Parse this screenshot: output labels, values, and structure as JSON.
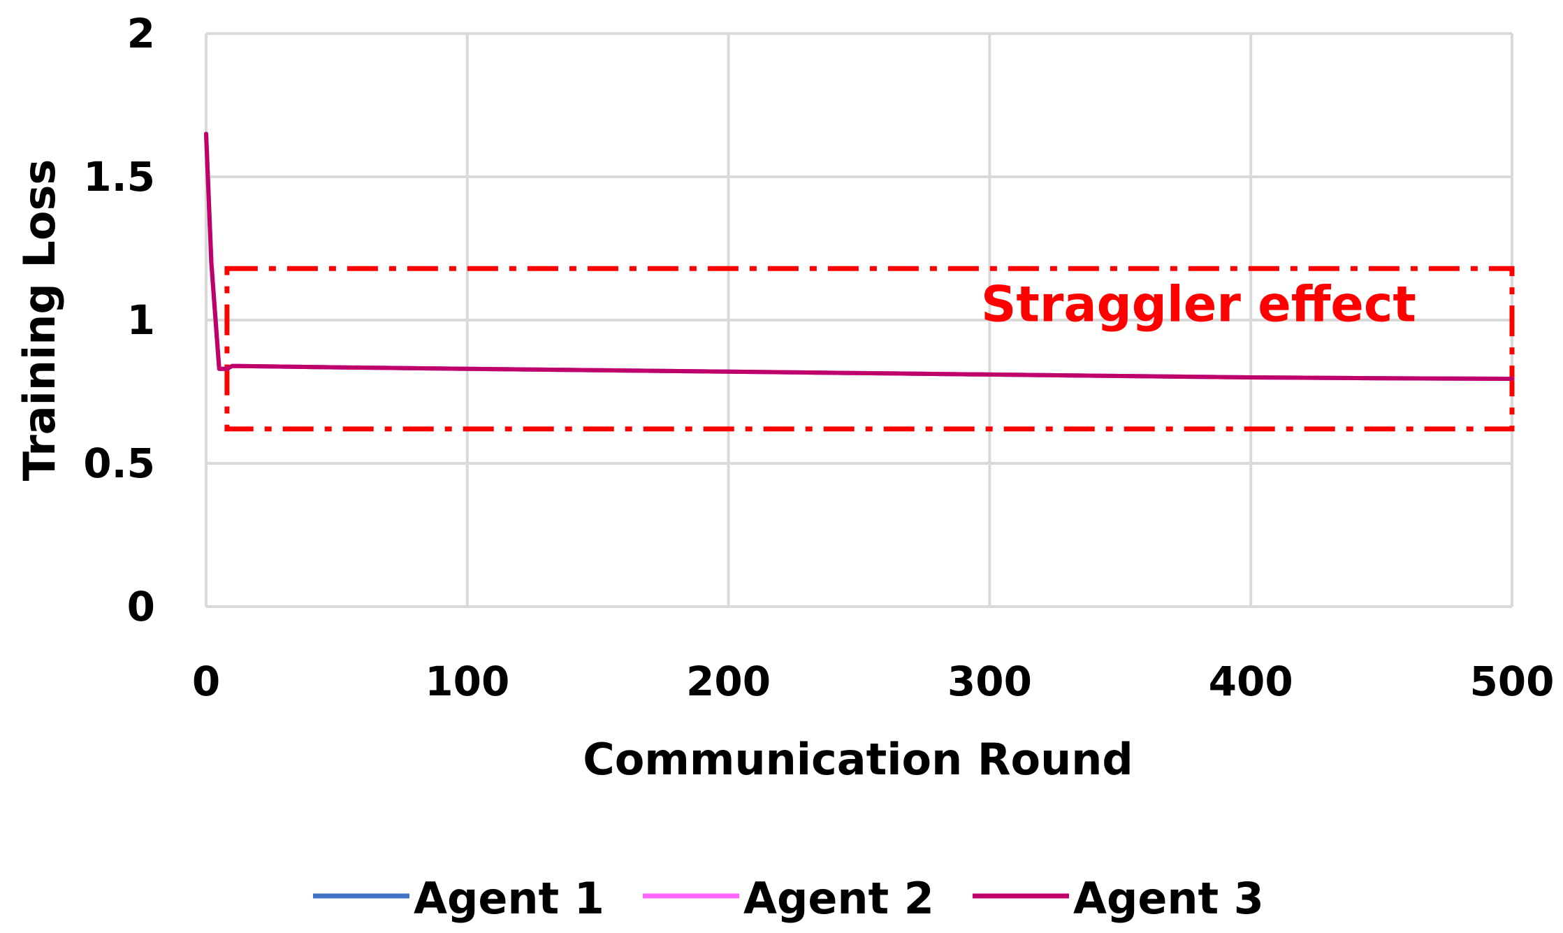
{
  "chart_data": {
    "type": "line",
    "xlabel": "Communication Round",
    "ylabel": "Training Loss",
    "xlim": [
      0,
      500
    ],
    "ylim": [
      0,
      2
    ],
    "xticks": [
      "0",
      "100",
      "200",
      "300",
      "400",
      "500"
    ],
    "yticks": [
      "0",
      "0.5",
      "1",
      "1.5",
      "2"
    ],
    "grid": true,
    "legend_position": "bottom",
    "series": [
      {
        "name": "Agent 1",
        "color": "#4472c4",
        "x": [
          0,
          2,
          5,
          8,
          10,
          50,
          100,
          150,
          200,
          250,
          300,
          350,
          400,
          450,
          500
        ],
        "y": [
          1.65,
          1.2,
          0.83,
          0.83,
          0.84,
          0.835,
          0.83,
          0.825,
          0.82,
          0.815,
          0.81,
          0.805,
          0.8,
          0.797,
          0.795
        ]
      },
      {
        "name": "Agent 2",
        "color": "#ff66ff",
        "x": [
          0,
          2,
          5,
          8,
          10,
          50,
          100,
          150,
          200,
          250,
          300,
          350,
          400,
          450,
          500
        ],
        "y": [
          1.65,
          1.2,
          0.83,
          0.83,
          0.84,
          0.835,
          0.83,
          0.825,
          0.82,
          0.815,
          0.81,
          0.805,
          0.8,
          0.797,
          0.795
        ]
      },
      {
        "name": "Agent 3",
        "color": "#c0006a",
        "x": [
          0,
          2,
          5,
          8,
          10,
          50,
          100,
          150,
          200,
          250,
          300,
          350,
          400,
          450,
          500
        ],
        "y": [
          1.65,
          1.2,
          0.83,
          0.83,
          0.84,
          0.835,
          0.83,
          0.825,
          0.82,
          0.815,
          0.81,
          0.805,
          0.8,
          0.797,
          0.795
        ]
      }
    ],
    "annotations": [
      {
        "text": "Straggler effect",
        "color": "#ff0000",
        "box_x": [
          8,
          500
        ],
        "box_y": [
          0.62,
          1.18
        ],
        "label_x": 380,
        "label_y": 1.05
      }
    ]
  }
}
